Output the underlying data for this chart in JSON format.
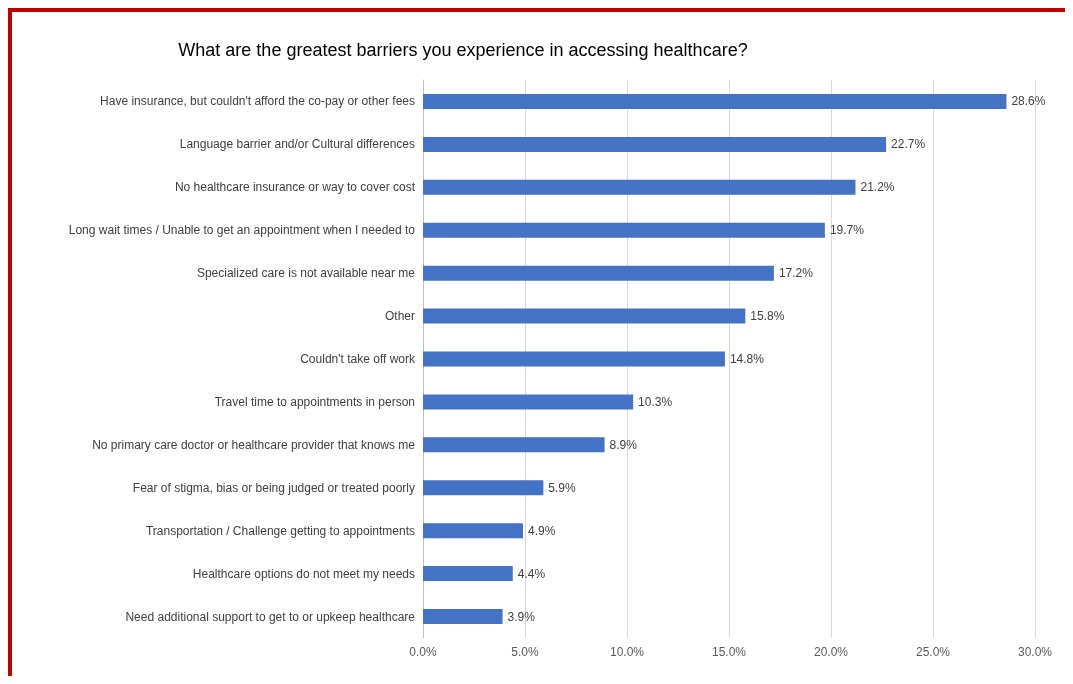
{
  "chart_data": {
    "type": "bar",
    "orientation": "horizontal",
    "title": "What are the greatest barriers you experience in accessing healthcare?",
    "categories": [
      "Have insurance, but couldn't afford the co-pay or other fees",
      "Language barrier and/or Cultural differences",
      "No healthcare insurance or way to cover cost",
      "Long wait times / Unable to get an appointment when I needed to",
      "Specialized care is not available near me",
      "Other",
      "Couldn't take off work",
      "Travel time to appointments in person",
      "No primary care doctor or healthcare provider that knows me",
      "Fear of stigma, bias or being judged or treated poorly",
      "Transportation / Challenge getting to appointments",
      "Healthcare options do not meet my needs",
      "Need additional support to get to or upkeep healthcare"
    ],
    "values": [
      28.6,
      22.7,
      21.2,
      19.7,
      17.2,
      15.8,
      14.8,
      10.3,
      8.9,
      5.9,
      4.9,
      4.4,
      3.9
    ],
    "value_labels": [
      "28.6%",
      "22.7%",
      "21.2%",
      "19.7%",
      "17.2%",
      "15.8%",
      "14.8%",
      "10.3%",
      "8.9%",
      "5.9%",
      "4.9%",
      "4.4%",
      "3.9%"
    ],
    "color": "#4472c4",
    "xlim": [
      0,
      30
    ],
    "xticks": [
      {
        "value": 0,
        "label": "0.0%"
      },
      {
        "value": 5,
        "label": "5.0%"
      },
      {
        "value": 10,
        "label": "10.0%"
      },
      {
        "value": 15,
        "label": "15.0%"
      },
      {
        "value": 20,
        "label": "20.0%"
      },
      {
        "value": 25,
        "label": "25.0%"
      },
      {
        "value": 30,
        "label": "30.0%"
      }
    ],
    "grid": "x"
  }
}
